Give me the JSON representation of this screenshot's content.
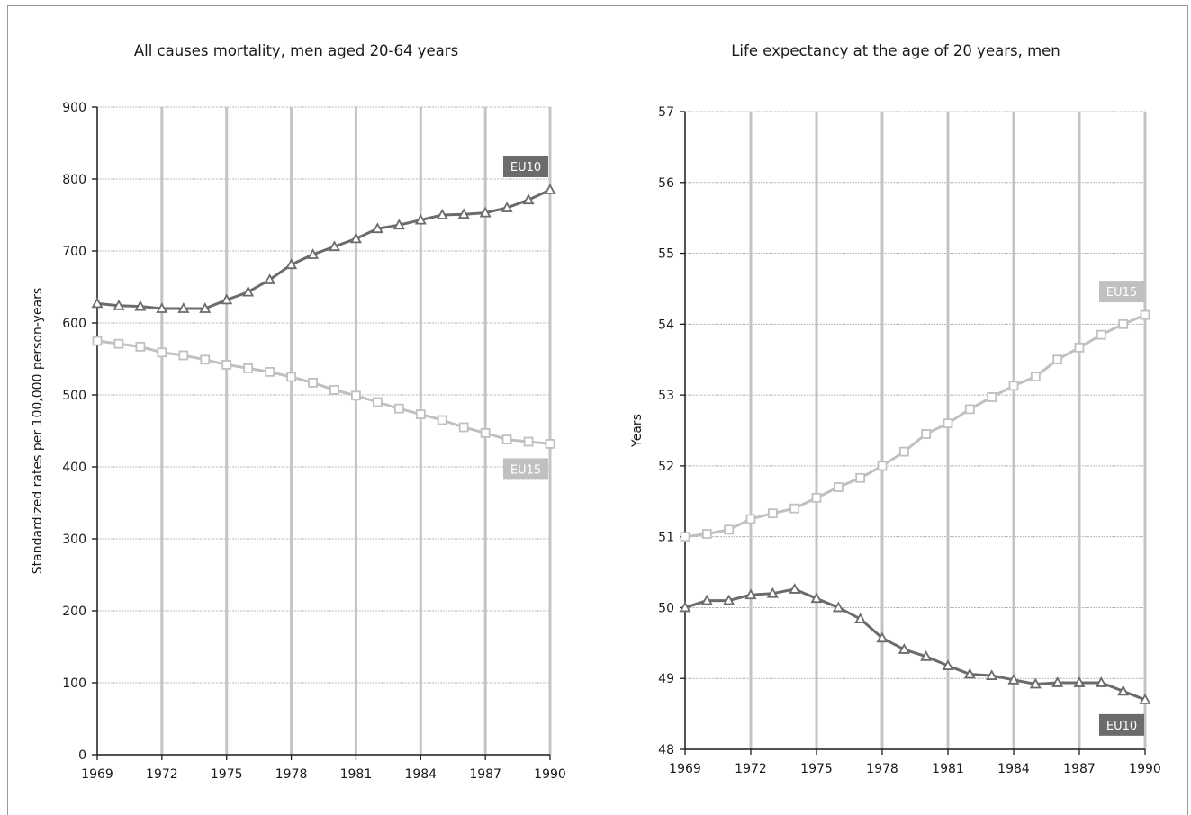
{
  "chart_data": [
    {
      "type": "line",
      "title": "All causes mortality, men aged 20-64 years",
      "xlabel": "",
      "ylabel": "Standardized rates per 100,000 person-years",
      "xlim": [
        1969,
        1990
      ],
      "ylim": [
        0,
        900
      ],
      "xticks": [
        1969,
        1972,
        1975,
        1978,
        1981,
        1984,
        1987,
        1990
      ],
      "yticks": [
        0,
        100,
        200,
        300,
        400,
        500,
        600,
        700,
        800,
        900
      ],
      "grid": true,
      "x": [
        1969,
        1970,
        1971,
        1972,
        1973,
        1974,
        1975,
        1976,
        1977,
        1978,
        1979,
        1980,
        1981,
        1982,
        1983,
        1984,
        1985,
        1986,
        1987,
        1988,
        1989,
        1990
      ],
      "series": [
        {
          "name": "EU10",
          "color": "#6b6b6b",
          "marker": "triangle",
          "values": [
            627,
            624,
            623,
            620,
            620,
            620,
            632,
            643,
            660,
            681,
            695,
            706,
            717,
            731,
            736,
            743,
            750,
            751,
            753,
            760,
            771,
            785
          ]
        },
        {
          "name": "EU15",
          "color": "#c0c0c0",
          "marker": "square",
          "values": [
            575,
            571,
            567,
            559,
            555,
            549,
            542,
            537,
            532,
            525,
            517,
            507,
            499,
            490,
            481,
            473,
            465,
            455,
            447,
            438,
            435,
            432
          ]
        }
      ]
    },
    {
      "type": "line",
      "title": "Life expectancy at the age of 20 years, men",
      "xlabel": "",
      "ylabel": "Years",
      "xlim": [
        1969,
        1990
      ],
      "ylim": [
        48,
        57
      ],
      "xticks": [
        1969,
        1972,
        1975,
        1978,
        1981,
        1984,
        1987,
        1990
      ],
      "yticks": [
        48,
        49,
        50,
        51,
        52,
        53,
        54,
        55,
        56,
        57
      ],
      "grid": true,
      "x": [
        1969,
        1970,
        1971,
        1972,
        1973,
        1974,
        1975,
        1976,
        1977,
        1978,
        1979,
        1980,
        1981,
        1982,
        1983,
        1984,
        1985,
        1986,
        1987,
        1988,
        1989,
        1990
      ],
      "series": [
        {
          "name": "EU15",
          "color": "#c0c0c0",
          "marker": "square",
          "values": [
            51.0,
            51.04,
            51.1,
            51.25,
            51.33,
            51.4,
            51.55,
            51.7,
            51.83,
            52.0,
            52.2,
            52.45,
            52.6,
            52.8,
            52.97,
            53.13,
            53.26,
            53.5,
            53.67,
            53.85,
            54.0,
            54.13
          ]
        },
        {
          "name": "EU10",
          "color": "#6b6b6b",
          "marker": "triangle",
          "values": [
            50.0,
            50.1,
            50.1,
            50.18,
            50.2,
            50.26,
            50.13,
            50.0,
            49.84,
            49.57,
            49.41,
            49.31,
            49.18,
            49.06,
            49.04,
            48.98,
            48.92,
            48.94,
            48.94,
            48.94,
            48.82,
            48.7
          ]
        }
      ]
    }
  ]
}
